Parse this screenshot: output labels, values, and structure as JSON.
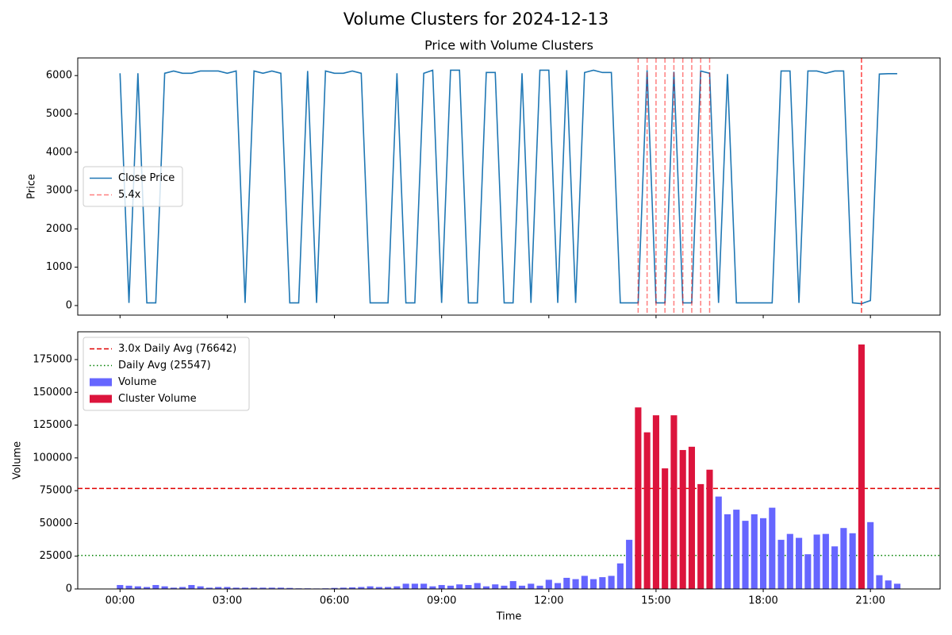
{
  "title": "Volume Clusters for 2024-12-13",
  "chart_data": [
    {
      "type": "line",
      "title": "Price with Volume Clusters",
      "ylabel": "Price",
      "x": [
        0,
        15,
        30,
        45,
        60,
        75,
        90,
        105,
        120,
        135,
        150,
        165,
        180,
        195,
        210,
        225,
        240,
        255,
        270,
        285,
        300,
        315,
        330,
        345,
        360,
        375,
        390,
        405,
        420,
        435,
        450,
        465,
        480,
        495,
        510,
        525,
        540,
        555,
        570,
        585,
        600,
        615,
        630,
        645,
        660,
        675,
        690,
        705,
        720,
        735,
        750,
        765,
        780,
        795,
        810,
        825,
        840,
        855,
        870,
        885,
        900,
        915,
        930,
        945,
        960,
        975,
        990,
        1005,
        1020,
        1035,
        1050,
        1065,
        1080,
        1095,
        1110,
        1125,
        1140,
        1155,
        1170,
        1185,
        1200,
        1215,
        1230,
        1245,
        1260,
        1275,
        1290,
        1305
      ],
      "xlim": [
        -71,
        1377
      ],
      "ylim": [
        -250,
        6460
      ],
      "yticks": [
        0,
        1000,
        2000,
        3000,
        4000,
        5000,
        6000
      ],
      "series": [
        {
          "name": "Close Price",
          "color": "#1f77b4",
          "values": [
            6060,
            70,
            6060,
            70,
            70,
            6060,
            6120,
            6060,
            6060,
            6120,
            6120,
            6120,
            6060,
            6120,
            70,
            6120,
            6060,
            6120,
            6060,
            70,
            70,
            6120,
            70,
            6120,
            6060,
            6060,
            6120,
            6060,
            70,
            70,
            70,
            6060,
            70,
            70,
            6060,
            6140,
            70,
            6140,
            6140,
            70,
            70,
            6080,
            6080,
            70,
            70,
            6060,
            70,
            6140,
            6140,
            70,
            6140,
            70,
            6080,
            6140,
            6080,
            6080,
            70,
            70,
            70,
            6140,
            70,
            70,
            6100,
            70,
            70,
            6120,
            6060,
            70,
            6040,
            70,
            70,
            70,
            70,
            70,
            6120,
            6120,
            70,
            6120,
            6120,
            6060,
            6120,
            6120,
            70,
            50,
            130,
            6040,
            6050,
            6050
          ]
        }
      ],
      "vlines": {
        "name": "5.4x",
        "color": "#ff0000",
        "x": [
          870,
          885,
          900,
          915,
          930,
          945,
          960,
          975,
          990,
          1245
        ],
        "opacity": [
          0.5,
          0.5,
          0.5,
          0.5,
          0.5,
          0.5,
          0.5,
          0.5,
          0.5,
          0.75
        ]
      },
      "legend": "center left"
    },
    {
      "type": "bar",
      "xlabel": "Time",
      "ylabel": "Volume",
      "x": [
        0,
        15,
        30,
        45,
        60,
        75,
        90,
        105,
        120,
        135,
        150,
        165,
        180,
        195,
        210,
        225,
        240,
        255,
        270,
        285,
        300,
        315,
        330,
        345,
        360,
        375,
        390,
        405,
        420,
        435,
        450,
        465,
        480,
        495,
        510,
        525,
        540,
        555,
        570,
        585,
        600,
        615,
        630,
        645,
        660,
        675,
        690,
        705,
        720,
        735,
        750,
        765,
        780,
        795,
        810,
        825,
        840,
        855,
        870,
        885,
        900,
        915,
        930,
        945,
        960,
        975,
        990,
        1005,
        1020,
        1035,
        1050,
        1065,
        1080,
        1095,
        1110,
        1125,
        1140,
        1155,
        1170,
        1185,
        1200,
        1215,
        1230,
        1245,
        1260,
        1275,
        1290,
        1305
      ],
      "xlim": [
        -71,
        1377
      ],
      "xticks": [
        {
          "value": 0,
          "label": "00:00"
        },
        {
          "value": 180,
          "label": "03:00"
        },
        {
          "value": 360,
          "label": "06:00"
        },
        {
          "value": 540,
          "label": "09:00"
        },
        {
          "value": 720,
          "label": "12:00"
        },
        {
          "value": 900,
          "label": "15:00"
        },
        {
          "value": 1080,
          "label": "18:00"
        },
        {
          "value": 1260,
          "label": "21:00"
        }
      ],
      "ylim": [
        0,
        196200
      ],
      "yticks": [
        0,
        25000,
        50000,
        75000,
        100000,
        125000,
        150000,
        175000
      ],
      "hlines": [
        {
          "name": "3.0x Daily Avg (76642)",
          "value": 76642,
          "color": "#e00000",
          "style": "dashed"
        },
        {
          "name": "Daily Avg (25547)",
          "value": 25547,
          "color": "#008000",
          "style": "dotted"
        }
      ],
      "series": [
        {
          "name": "Volume",
          "color": "#6666ff",
          "values": [
            3000,
            2500,
            2000,
            1500,
            3000,
            2000,
            1000,
            1500,
            3000,
            2000,
            1000,
            1500,
            1500,
            1000,
            1000,
            1000,
            1000,
            1000,
            1000,
            800,
            500,
            500,
            400,
            500,
            800,
            1000,
            1200,
            1500,
            2000,
            1500,
            1500,
            2000,
            4000,
            4000,
            4000,
            2000,
            3000,
            2500,
            3500,
            3000,
            4500,
            2000,
            3500,
            2500,
            6000,
            2500,
            4000,
            2500,
            7000,
            4500,
            8500,
            7500,
            10000,
            7500,
            9000,
            10000,
            19500,
            37500,
            null,
            null,
            null,
            null,
            null,
            null,
            null,
            null,
            null,
            70500,
            57000,
            60500,
            52000,
            57000,
            54000,
            62000,
            37500,
            42000,
            39000,
            26500,
            41500,
            42000,
            32500,
            46500,
            42500,
            null,
            51000,
            10500,
            6500,
            4000
          ]
        },
        {
          "name": "Cluster Volume",
          "color": "#dc143c",
          "values": [
            null,
            null,
            null,
            null,
            null,
            null,
            null,
            null,
            null,
            null,
            null,
            null,
            null,
            null,
            null,
            null,
            null,
            null,
            null,
            null,
            null,
            null,
            null,
            null,
            null,
            null,
            null,
            null,
            null,
            null,
            null,
            null,
            null,
            null,
            null,
            null,
            null,
            null,
            null,
            null,
            null,
            null,
            null,
            null,
            null,
            null,
            null,
            null,
            null,
            null,
            null,
            null,
            null,
            null,
            null,
            null,
            null,
            null,
            138500,
            119500,
            132500,
            92000,
            132500,
            106000,
            108500,
            80000,
            91000,
            null,
            null,
            null,
            null,
            null,
            null,
            null,
            null,
            null,
            null,
            null,
            null,
            null,
            null,
            null,
            null,
            186500,
            null,
            null,
            null,
            null
          ]
        }
      ],
      "legend": "upper left"
    }
  ]
}
